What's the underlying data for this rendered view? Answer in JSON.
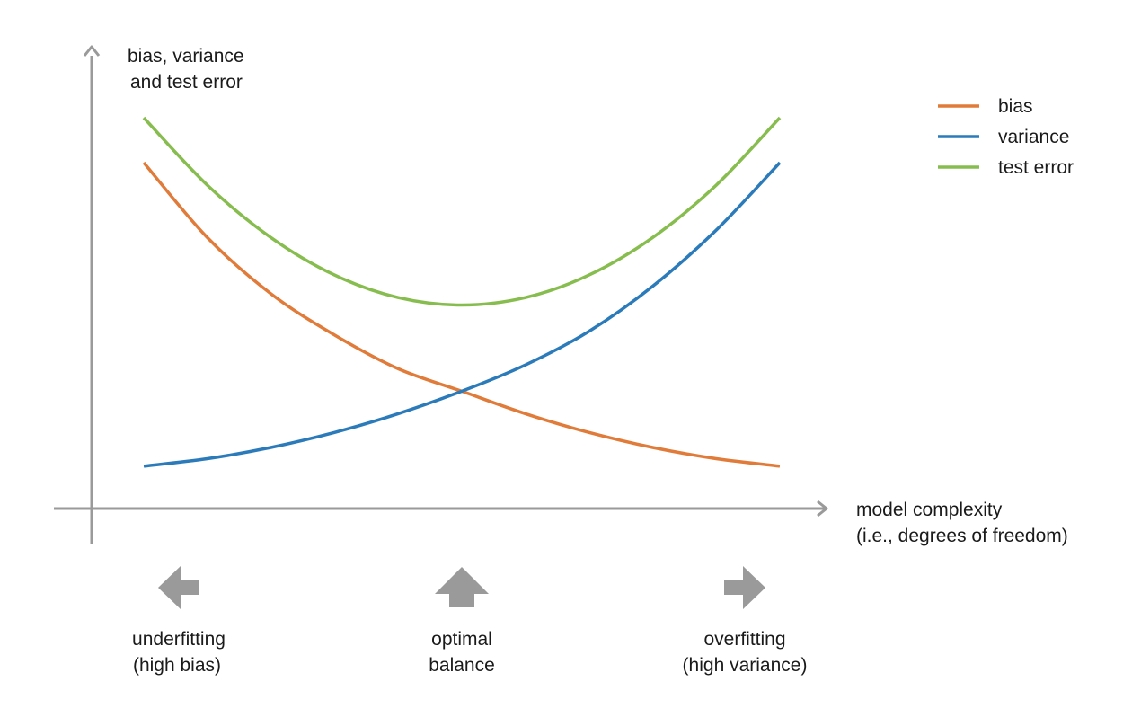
{
  "chart_data": {
    "type": "line",
    "ylabel": [
      "bias, variance",
      "and test error"
    ],
    "xlabel": [
      "model complexity",
      "(i.e., degrees of freedom)"
    ],
    "x_range": [
      0,
      1
    ],
    "y_range": [
      0,
      1
    ],
    "grid": false,
    "legend_position": "top-right",
    "series": [
      {
        "name": "bias",
        "color": "#e07b39",
        "x": [
          0,
          0.1,
          0.2,
          0.3,
          0.4,
          0.5,
          0.6,
          0.7,
          0.8,
          0.9,
          1.0
        ],
        "y": [
          0.88,
          0.68,
          0.53,
          0.42,
          0.33,
          0.27,
          0.21,
          0.16,
          0.12,
          0.09,
          0.07
        ]
      },
      {
        "name": "variance",
        "color": "#2b7bba",
        "x": [
          0,
          0.1,
          0.2,
          0.3,
          0.4,
          0.5,
          0.6,
          0.7,
          0.8,
          0.9,
          1.0
        ],
        "y": [
          0.07,
          0.09,
          0.12,
          0.16,
          0.21,
          0.27,
          0.34,
          0.43,
          0.55,
          0.7,
          0.88
        ]
      },
      {
        "name": "test error",
        "color": "#86bd4e",
        "x": [
          0,
          0.1,
          0.2,
          0.3,
          0.4,
          0.5,
          0.6,
          0.7,
          0.8,
          0.9,
          1.0
        ],
        "y": [
          1.0,
          0.82,
          0.68,
          0.58,
          0.52,
          0.5,
          0.52,
          0.58,
          0.68,
          0.82,
          1.0
        ]
      }
    ],
    "annotations": [
      {
        "id": "underfitting",
        "arrow": "left",
        "lines": [
          "underfitting",
          "(high bias)"
        ]
      },
      {
        "id": "optimal",
        "arrow": "up",
        "lines": [
          "optimal",
          "balance"
        ]
      },
      {
        "id": "overfitting",
        "arrow": "right",
        "lines": [
          "overfitting",
          "(high variance)"
        ]
      }
    ],
    "colors": {
      "axis": "#9a9a9a",
      "arrow": "#9a9a9a",
      "text": "#1a1a1a"
    }
  }
}
